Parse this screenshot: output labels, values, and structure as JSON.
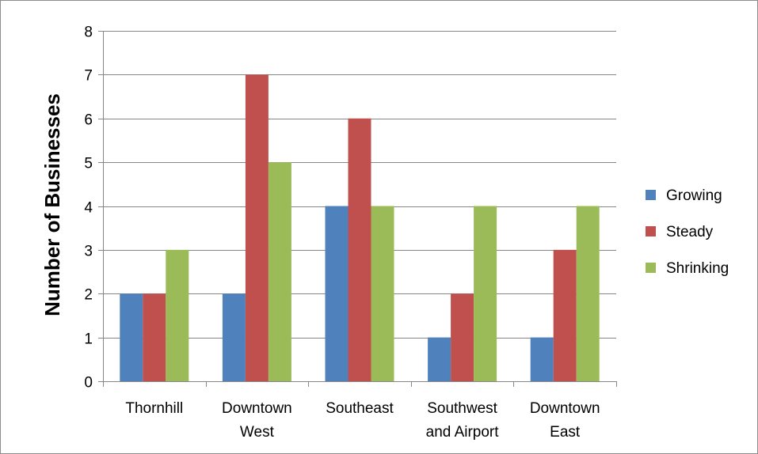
{
  "chart_data": {
    "type": "bar",
    "title": "",
    "xlabel": "",
    "ylabel": "Number of Businesses",
    "ylim": [
      0,
      8
    ],
    "yticks": [
      0,
      1,
      2,
      3,
      4,
      5,
      6,
      7,
      8
    ],
    "grid": true,
    "legend_position": "right",
    "categories": [
      [
        "Thornhill"
      ],
      [
        "Downtown",
        "West"
      ],
      [
        "Southeast"
      ],
      [
        "Southwest",
        "and Airport"
      ],
      [
        "Downtown",
        "East"
      ]
    ],
    "series": [
      {
        "name": "Growing",
        "color": "#4f81bd",
        "values": [
          2,
          2,
          4,
          1,
          1
        ]
      },
      {
        "name": "Steady",
        "color": "#c0504d",
        "values": [
          2,
          7,
          6,
          2,
          3
        ]
      },
      {
        "name": "Shrinking",
        "color": "#9bbb59",
        "values": [
          3,
          5,
          4,
          4,
          4
        ]
      }
    ]
  }
}
